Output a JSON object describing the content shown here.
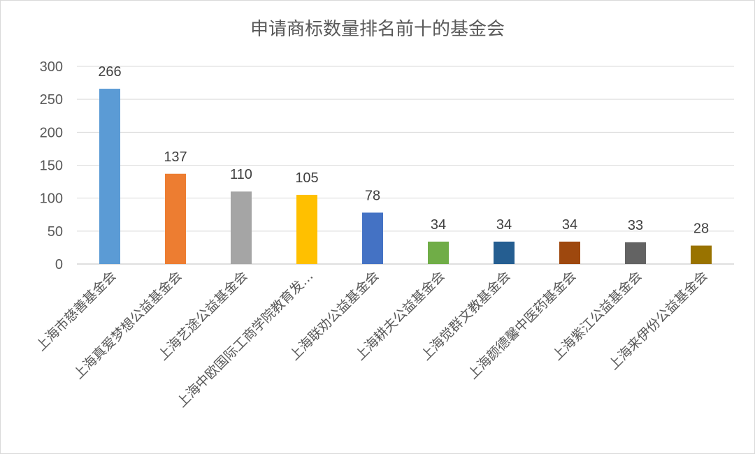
{
  "chart_data": {
    "type": "bar",
    "title": "申请商标数量排名前十的基金会",
    "categories": [
      "上海市慈善基金会",
      "上海真爱梦想公益基金会",
      "上海艺途公益基金会",
      "上海中欧国际工商学院教育发…",
      "上海联劝公益基金会",
      "上海耕夫公益基金会",
      "上海觉群文教基金会",
      "上海颜德馨中医药基金会",
      "上海紫江公益基金会",
      "上海来伊份公益基金会"
    ],
    "values": [
      266,
      137,
      110,
      105,
      78,
      34,
      34,
      34,
      33,
      28
    ],
    "colors": [
      "#5B9BD5",
      "#ED7D31",
      "#A5A5A5",
      "#FFC000",
      "#4472C4",
      "#70AD47",
      "#255E91",
      "#9E480E",
      "#636363",
      "#997300"
    ],
    "ylim": [
      0,
      300
    ],
    "yticks": [
      0,
      50,
      100,
      150,
      200,
      250,
      300
    ],
    "grid": true,
    "legend": "none"
  }
}
